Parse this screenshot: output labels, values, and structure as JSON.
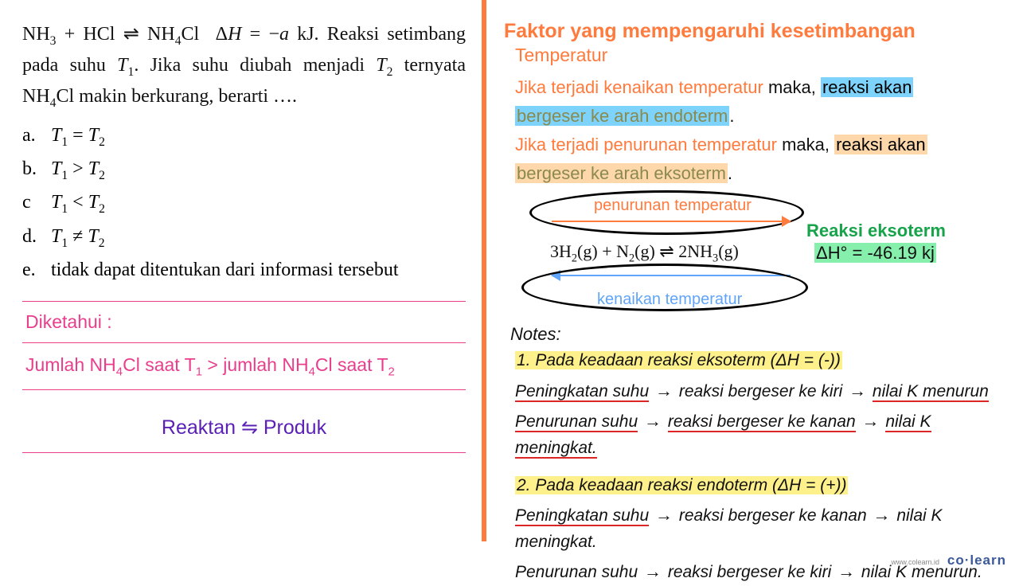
{
  "left": {
    "question_html": "NH<sub>3</sub> + HCl ⇌ NH<sub>4</sub>Cl &nbsp;Δ<i>H</i> = −<i>a</i> kJ. Reaksi setimbang pada suhu <i>T</i><sub>1</sub>. Jika suhu diubah menjadi <i>T</i><sub>2</sub> ternyata NH<sub>4</sub>Cl makin berkurang, berarti ….",
    "options": [
      {
        "lbl": "a.",
        "html": "<i>T</i><sub>1</sub> = <i>T</i><sub>2</sub>"
      },
      {
        "lbl": "b.",
        "html": "<i>T</i><sub>1</sub> &gt; <i>T</i><sub>2</sub>"
      },
      {
        "lbl": "c",
        "html": "<i>T</i><sub>1</sub> &lt; <i>T</i><sub>2</sub>"
      },
      {
        "lbl": "d.",
        "html": "<i>T</i><sub>1</sub> ≠ <i>T</i><sub>2</sub>"
      },
      {
        "lbl": "e.",
        "html": "tidak dapat ditentukan dari informasi tersebut"
      }
    ],
    "diketahui_title": "Diketahui :",
    "diketahui_text_html": "Jumlah NH<sub>4</sub>Cl saat T<sub>1</sub> &gt; jumlah NH<sub>4</sub>Cl saat T<sub>2</sub>",
    "reaktan": "Reaktan ⇋ Produk"
  },
  "right": {
    "title": "Faktor yang mempengaruhi kesetimbangan",
    "sub": "Temperatur",
    "line1a": "Jika terjadi kenaikan temperatur",
    "line1b": " maka, ",
    "line1c_hl": "reaksi akan",
    "line2_olive": "bergeser ke arah endoterm",
    "line3a": "Jika terjadi penurunan temperatur",
    "line3b": " maka, ",
    "line3c_hl": "reaksi akan",
    "line4_olive": "bergeser ke arah eksoterm",
    "diagram": {
      "top_label": "penurunan temperatur",
      "equation_html": "3H<sub>2</sub>(g) + N<sub>2</sub>(g) ⇌ 2NH<sub>3</sub>(g)",
      "bot_label": "kenaikan temperatur",
      "side1": "Reaksi eksoterm",
      "side2": "ΔH° = -46.19 kj",
      "top_arrow_color": "#ff7a3d",
      "bot_arrow_color": "#60a5fa"
    },
    "notes_title": "Notes:",
    "note1_hl": "1.  Pada keadaan reaksi eksoterm (ΔH = (-))",
    "note1_l1": {
      "a": "Peningkatan suhu",
      "b": "reaksi bergeser ke kiri",
      "c": "nilai K menurun"
    },
    "note1_l2": {
      "a": "Penurunan suhu",
      "b": "reaksi bergeser ke kanan",
      "c": "nilai K meningkat."
    },
    "note2_hl": "2. Pada keadaan reaksi endoterm (ΔH = (+))",
    "note2_l1": {
      "a": "Peningkatan suhu",
      "b": "reaksi bergeser ke kanan",
      "c": "nilai K meningkat."
    },
    "note2_l2": {
      "a": "Penurunan suhu",
      "b": "reaksi bergeser ke kiri",
      "c": "nilai K menurun."
    }
  },
  "footer": {
    "url": "www.colearn.id",
    "brand": "co·learn"
  },
  "colors": {
    "accent": "#ff7a3d",
    "pink": "#e83e8c",
    "purple": "#5b21b6",
    "green": "#16a34a",
    "blue": "#60a5fa",
    "red": "#dc2626",
    "hl_cyan": "#7dd3fc",
    "hl_orange": "#fed7aa",
    "hl_green": "#86efac",
    "hl_yellow": "#fef08a"
  }
}
